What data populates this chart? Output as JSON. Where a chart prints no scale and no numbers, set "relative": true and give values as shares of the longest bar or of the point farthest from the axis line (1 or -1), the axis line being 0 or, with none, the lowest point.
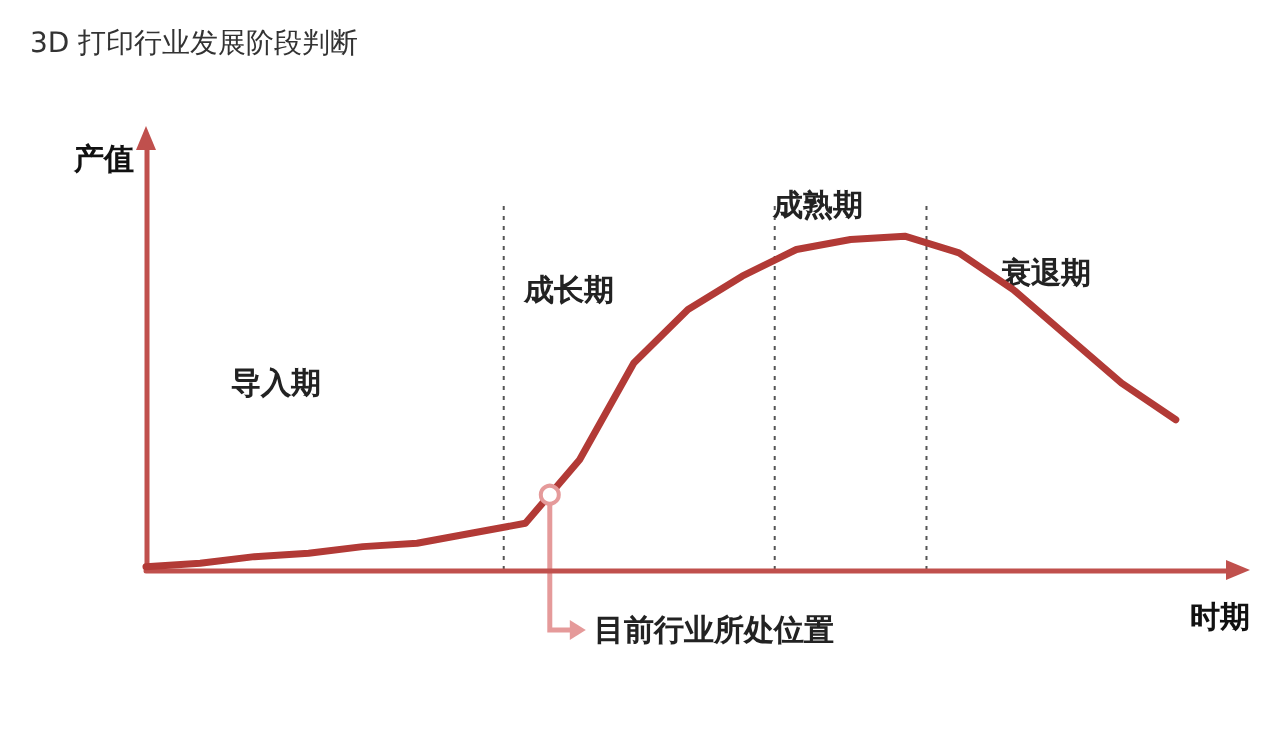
{
  "chart_data": {
    "type": "line",
    "relative": true,
    "title": "3D 打印行业发展阶段判断",
    "xlabel": "时期",
    "ylabel": "产值",
    "categories": [
      null,
      null,
      null,
      null,
      null,
      null,
      null,
      null,
      null,
      null,
      null,
      null,
      null,
      null,
      null,
      null,
      null,
      null,
      null,
      null,
      null
    ],
    "grid": false,
    "marker": "none",
    "line_style": "solid",
    "series": [
      {
        "color": "#b23a36",
        "values": [
          0.01,
          0.02,
          0.04,
          0.05,
          0.07,
          0.08,
          0.11,
          0.14,
          0.33,
          0.62,
          0.78,
          0.88,
          0.96,
          0.99,
          1,
          0.95,
          0.84,
          0.7,
          0.56,
          0.45,
          null
        ]
      }
    ],
    "annotations": [
      "导入期",
      "成长期",
      "成熟期",
      "衰退期",
      "目前行业所处位置"
    ]
  }
}
